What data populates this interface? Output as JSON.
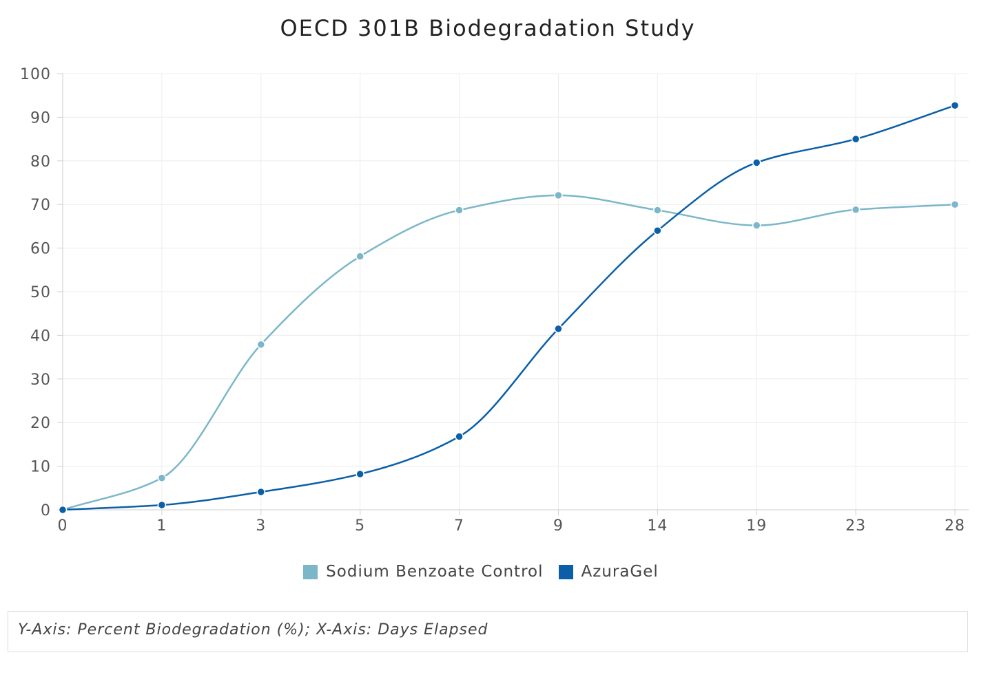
{
  "chart_data": {
    "type": "line",
    "title": "OECD 301B Biodegradation Study",
    "categories": [
      "0",
      "1",
      "3",
      "5",
      "7",
      "9",
      "14",
      "19",
      "23",
      "28"
    ],
    "y_ticks": [
      "0",
      "10",
      "20",
      "30",
      "40",
      "50",
      "60",
      "70",
      "80",
      "90",
      "100"
    ],
    "ylim": [
      0,
      100
    ],
    "grid": true,
    "legend_position": "bottom",
    "series": [
      {
        "name": "Sodium Benzoate Control",
        "color": "#7bb7c9",
        "values": [
          0,
          7.3,
          37.9,
          58.1,
          68.7,
          72.1,
          68.7,
          65.2,
          68.8,
          70.0
        ]
      },
      {
        "name": "AzuraGel",
        "color": "#0a5fa8",
        "values": [
          0,
          1.1,
          4.1,
          8.2,
          16.8,
          41.5,
          64.0,
          79.6,
          85.0,
          92.7
        ]
      }
    ],
    "footnote": "Y-Axis: Percent Biodegradation (%); X-Axis: Days Elapsed"
  }
}
